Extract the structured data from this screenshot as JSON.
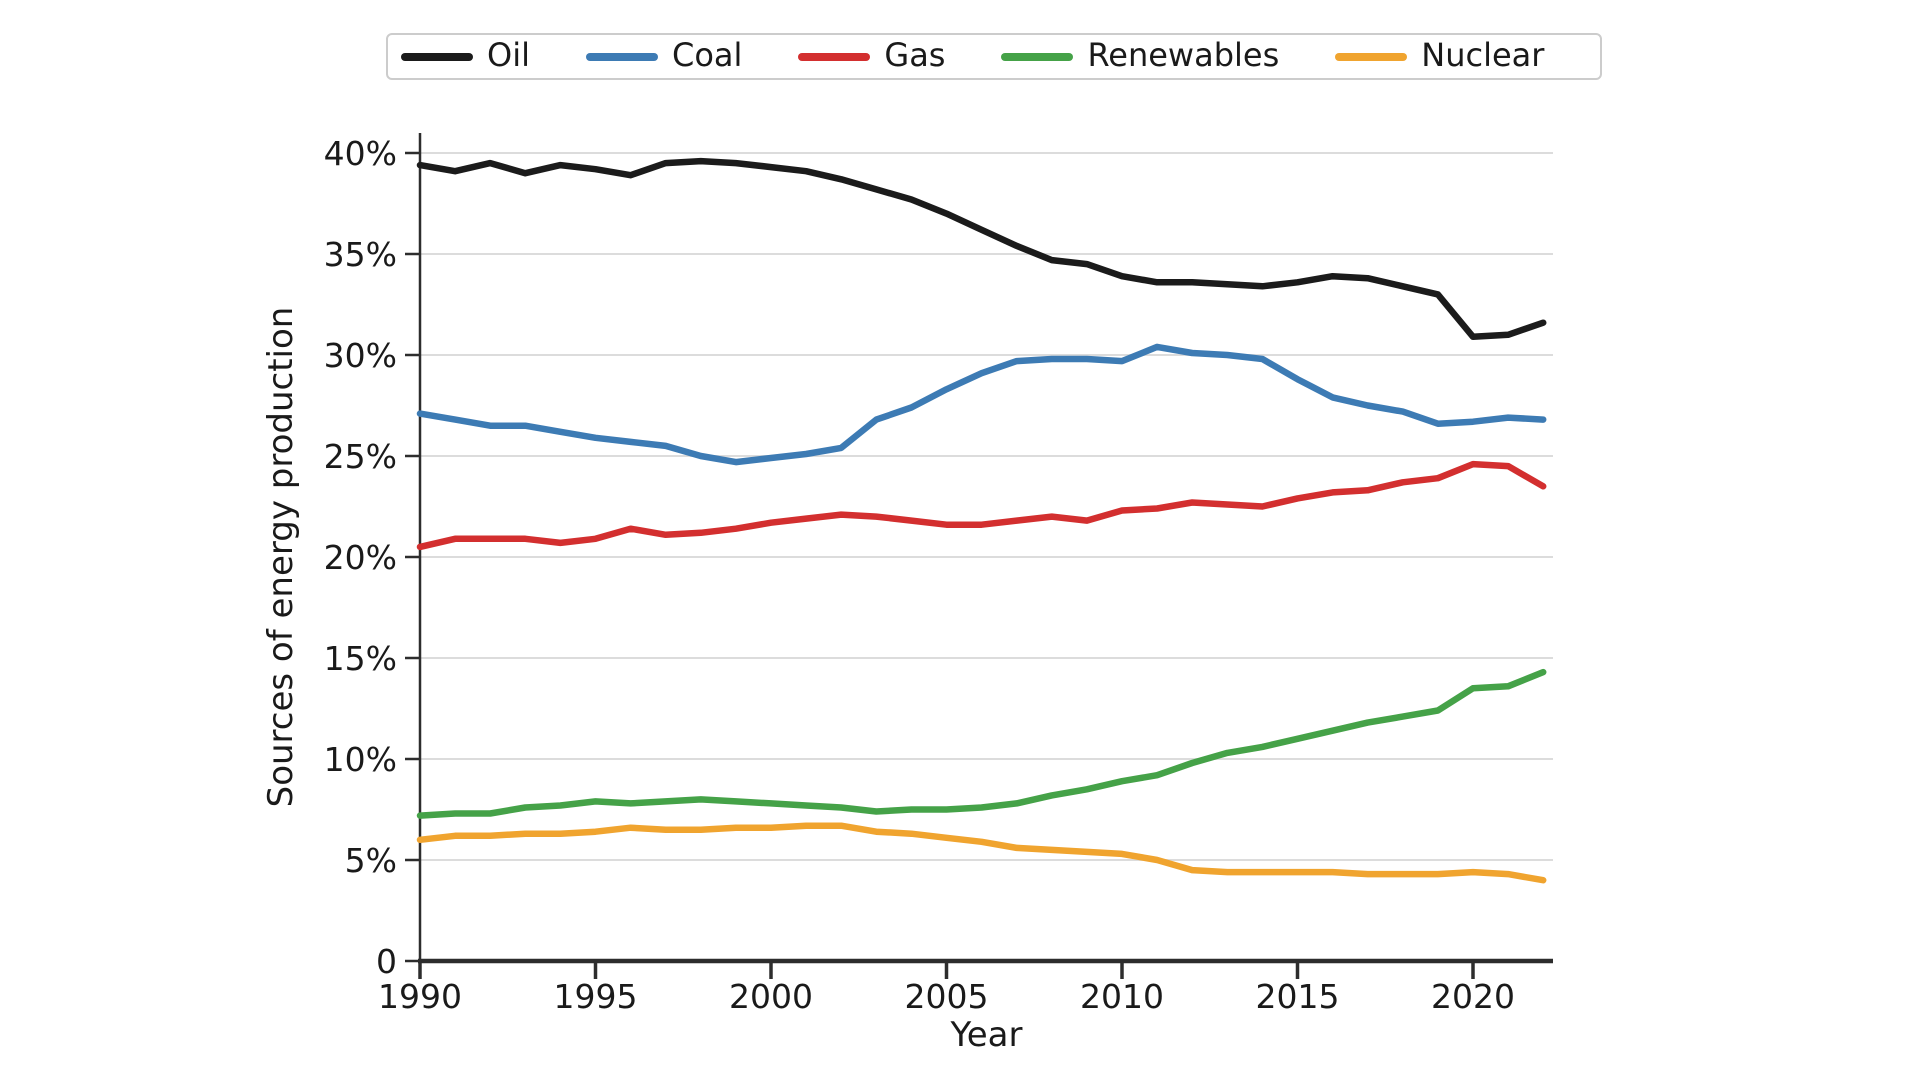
{
  "figure": {
    "background": "#ffffff",
    "text_color": "#1a1a1a",
    "grid_color": "#dcdcdc",
    "axis_color": "#2d2d2d",
    "legend_border_color": "#cccccc"
  },
  "chart_data": {
    "type": "line",
    "title": "",
    "xlabel": "Year",
    "ylabel": "Sources of energy production",
    "grid": "horizontal",
    "legend_position": "top",
    "xlim": [
      1990,
      2022.3
    ],
    "ylim": [
      0,
      41.6
    ],
    "x": [
      1990,
      1991,
      1992,
      1993,
      1994,
      1995,
      1996,
      1997,
      1998,
      1999,
      2000,
      2001,
      2002,
      2003,
      2004,
      2005,
      2006,
      2007,
      2008,
      2009,
      2010,
      2011,
      2012,
      2013,
      2014,
      2015,
      2016,
      2017,
      2018,
      2019,
      2020,
      2021,
      2022
    ],
    "series": [
      {
        "name": "Oil",
        "color": "#1b1b1b",
        "values": [
          39.4,
          39.1,
          39.5,
          39.0,
          39.4,
          39.2,
          38.9,
          39.5,
          39.6,
          39.5,
          39.3,
          39.1,
          38.7,
          38.2,
          37.7,
          37.0,
          36.2,
          35.4,
          34.7,
          34.5,
          33.9,
          33.6,
          33.6,
          33.5,
          33.4,
          33.6,
          33.9,
          33.8,
          33.4,
          33.0,
          30.9,
          31.0,
          31.6
        ]
      },
      {
        "name": "Coal",
        "color": "#3d7bb4",
        "values": [
          27.1,
          26.8,
          26.5,
          26.5,
          26.2,
          25.9,
          25.7,
          25.5,
          25.0,
          24.7,
          24.9,
          25.1,
          25.4,
          26.8,
          27.4,
          28.3,
          29.1,
          29.7,
          29.8,
          29.8,
          29.7,
          30.4,
          30.1,
          30.0,
          29.8,
          28.8,
          27.9,
          27.5,
          27.2,
          26.6,
          26.7,
          26.9,
          26.8
        ]
      },
      {
        "name": "Gas",
        "color": "#d32f2f",
        "values": [
          20.5,
          20.9,
          20.9,
          20.9,
          20.7,
          20.9,
          21.4,
          21.1,
          21.2,
          21.4,
          21.7,
          21.9,
          22.1,
          22.0,
          21.8,
          21.6,
          21.6,
          21.8,
          22.0,
          21.8,
          22.3,
          22.4,
          22.7,
          22.6,
          22.5,
          22.9,
          23.2,
          23.3,
          23.7,
          23.9,
          24.6,
          24.5,
          23.5
        ]
      },
      {
        "name": "Renewables",
        "color": "#45a248",
        "values": [
          7.2,
          7.3,
          7.3,
          7.6,
          7.7,
          7.9,
          7.8,
          7.9,
          8.0,
          7.9,
          7.8,
          7.7,
          7.6,
          7.4,
          7.5,
          7.5,
          7.6,
          7.8,
          8.2,
          8.5,
          8.9,
          9.2,
          9.8,
          10.3,
          10.6,
          11.0,
          11.4,
          11.8,
          12.1,
          12.4,
          13.5,
          13.6,
          14.3
        ]
      },
      {
        "name": "Nuclear",
        "color": "#f0a42f",
        "values": [
          6.0,
          6.2,
          6.2,
          6.3,
          6.3,
          6.4,
          6.6,
          6.5,
          6.5,
          6.6,
          6.6,
          6.7,
          6.7,
          6.4,
          6.3,
          6.1,
          5.9,
          5.6,
          5.5,
          5.4,
          5.3,
          5.0,
          4.5,
          4.4,
          4.4,
          4.4,
          4.4,
          4.3,
          4.3,
          4.3,
          4.4,
          4.3,
          4.0
        ]
      }
    ],
    "yticks": [
      {
        "value": 40,
        "label": "40%"
      },
      {
        "value": 35,
        "label": "35%"
      },
      {
        "value": 30,
        "label": "30%"
      },
      {
        "value": 25,
        "label": "25%"
      },
      {
        "value": 20,
        "label": "20%"
      },
      {
        "value": 15,
        "label": "15%"
      },
      {
        "value": 10,
        "label": "10%"
      },
      {
        "value": 5,
        "label": "5%"
      },
      {
        "value": 0,
        "label": "0"
      }
    ],
    "xticks": [
      {
        "value": 1990,
        "label": "1990"
      },
      {
        "value": 1995,
        "label": "1995"
      },
      {
        "value": 2000,
        "label": "2000"
      },
      {
        "value": 2005,
        "label": "2005"
      },
      {
        "value": 2010,
        "label": "2010"
      },
      {
        "value": 2015,
        "label": "2015"
      },
      {
        "value": 2020,
        "label": "2020"
      }
    ]
  }
}
